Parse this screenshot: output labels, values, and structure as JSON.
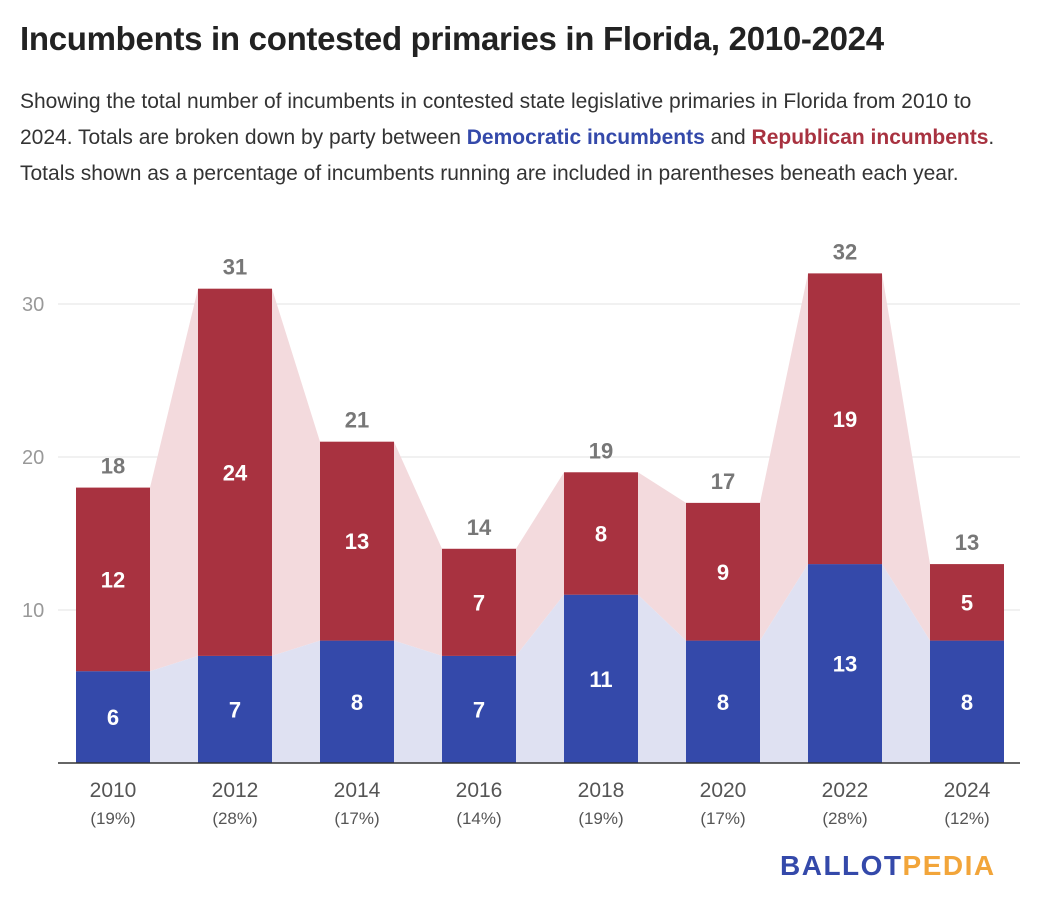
{
  "title": "Incumbents in contested primaries in Florida, 2010-2024",
  "subtitle": {
    "part1": "Showing the total number of incumbents in contested state legislative primaries in Florida from 2010 to 2024. Totals are broken down by party between ",
    "dem_label": "Democratic incumbents",
    "part2": " and ",
    "rep_label": "Republican incumbents",
    "part3": ". Totals shown as a percentage of incumbents running are included in parentheses beneath each year."
  },
  "brand": {
    "part1": "BALLOT",
    "part2": "PEDIA"
  },
  "colors": {
    "dem": "#3449aa",
    "rep": "#a83240",
    "dem_area": "#dfe1f2",
    "rep_area": "#f3dadd",
    "grid": "#e3e3e3",
    "axis": "#333333",
    "tick_text": "#999999",
    "total_text": "#777777"
  },
  "chart_data": {
    "type": "bar",
    "stacked": true,
    "categories": [
      "2010",
      "2012",
      "2014",
      "2016",
      "2018",
      "2020",
      "2022",
      "2024"
    ],
    "category_sublabels": [
      "(19%)",
      "(28%)",
      "(17%)",
      "(14%)",
      "(19%)",
      "(17%)",
      "(28%)",
      "(12%)"
    ],
    "series": [
      {
        "name": "Democratic incumbents",
        "values": [
          6,
          7,
          8,
          7,
          11,
          8,
          13,
          8
        ]
      },
      {
        "name": "Republican incumbents",
        "values": [
          12,
          24,
          13,
          7,
          8,
          9,
          19,
          5
        ]
      }
    ],
    "totals": [
      18,
      31,
      21,
      14,
      19,
      17,
      32,
      13
    ],
    "y_ticks": [
      10,
      20,
      30
    ],
    "ylim": [
      0,
      35
    ],
    "grid": true,
    "shaded_area_between_bars": true
  }
}
